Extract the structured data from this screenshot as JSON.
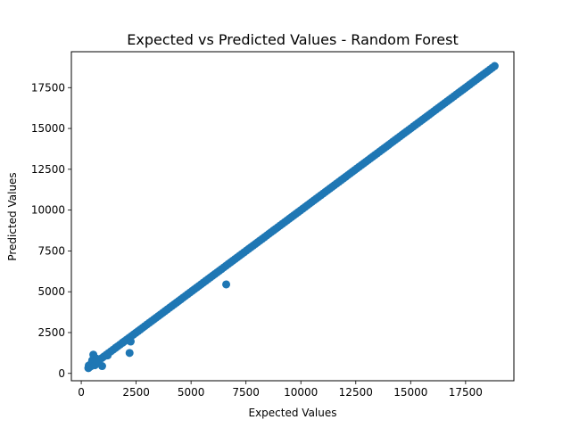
{
  "chart_data": {
    "type": "scatter",
    "title": "Expected vs Predicted Values - Random Forest",
    "xlabel": "Expected Values",
    "ylabel": "Predicted Values",
    "xlim": [
      -450,
      19700
    ],
    "ylim": [
      -450,
      19700
    ],
    "xticks": [
      0,
      2500,
      5000,
      7500,
      10000,
      12500,
      15000,
      17500
    ],
    "yticks": [
      0,
      2500,
      5000,
      7500,
      10000,
      12500,
      15000,
      17500
    ],
    "grid": false,
    "legend": "none",
    "point_color": "#1f77b4",
    "series": [
      {
        "diagonal_range": [
          326,
          18823
        ],
        "outliers": [
          {
            "x": 326,
            "y": 330
          },
          {
            "x": 340,
            "y": 480
          },
          {
            "x": 400,
            "y": 420
          },
          {
            "x": 450,
            "y": 600
          },
          {
            "x": 500,
            "y": 800
          },
          {
            "x": 550,
            "y": 1150
          },
          {
            "x": 620,
            "y": 500
          },
          {
            "x": 700,
            "y": 900
          },
          {
            "x": 800,
            "y": 700
          },
          {
            "x": 950,
            "y": 450
          },
          {
            "x": 1200,
            "y": 1100
          },
          {
            "x": 1900,
            "y": 1900
          },
          {
            "x": 2200,
            "y": 1250
          },
          {
            "x": 2250,
            "y": 1950
          },
          {
            "x": 6600,
            "y": 5450
          }
        ]
      }
    ]
  }
}
